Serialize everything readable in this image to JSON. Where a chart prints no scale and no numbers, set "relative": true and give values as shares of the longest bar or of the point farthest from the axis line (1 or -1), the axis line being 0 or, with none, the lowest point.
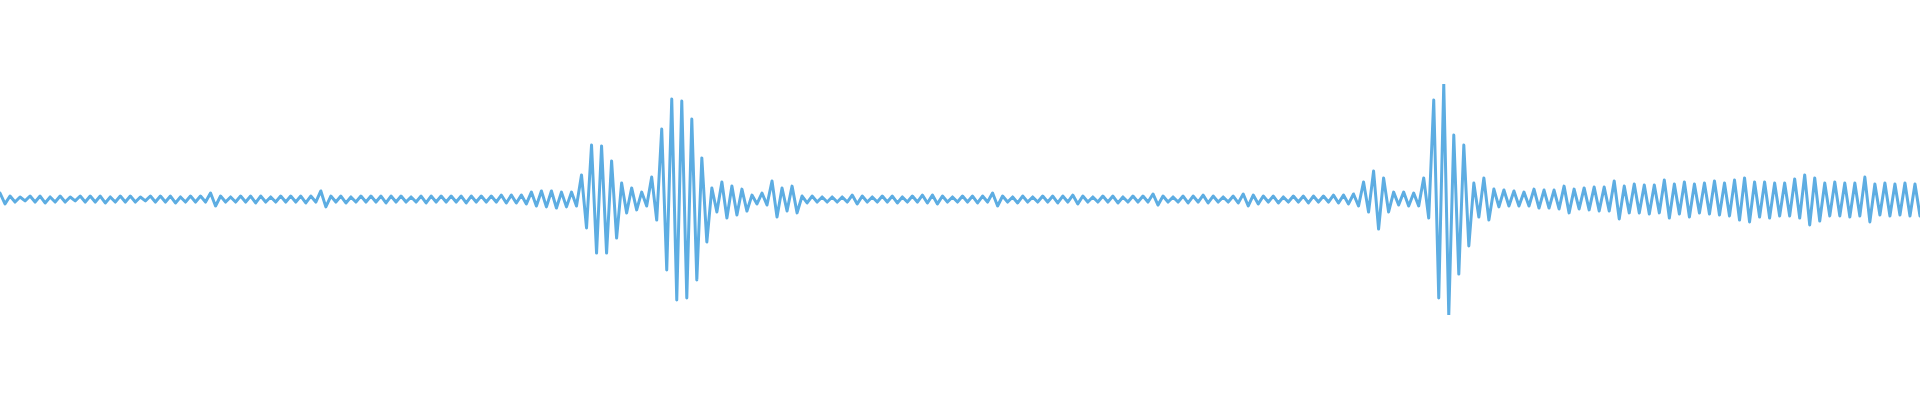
{
  "chart_data": {
    "type": "line",
    "relative": true,
    "color": "#5dade2",
    "categories": [
      null,
      null,
      null,
      null,
      null,
      null,
      null,
      null,
      null,
      null,
      null,
      null,
      null,
      null,
      null,
      null,
      null,
      null,
      null,
      null,
      null,
      null,
      null,
      null,
      null,
      null,
      null,
      null,
      null,
      null,
      null,
      null,
      null,
      null,
      null,
      null,
      null,
      null,
      null,
      null,
      null,
      null,
      null,
      null,
      null,
      null,
      null,
      null,
      null,
      null,
      null,
      null,
      null,
      null,
      null,
      null,
      null,
      null,
      null,
      null,
      null,
      null,
      null,
      null,
      null,
      null,
      null,
      null,
      null,
      null,
      null,
      null,
      null,
      null,
      null,
      null,
      null,
      null,
      null,
      null,
      null,
      null,
      null,
      null,
      null,
      null,
      null,
      null,
      null,
      null,
      null,
      null,
      null,
      null,
      null,
      null,
      null,
      null,
      null,
      null,
      null,
      null,
      null,
      null,
      null,
      null,
      null,
      null,
      null,
      null,
      null,
      null,
      null,
      null,
      null,
      null,
      null,
      null,
      null,
      null,
      null,
      null,
      null,
      null,
      null,
      null,
      null,
      null,
      null,
      null,
      null,
      null,
      null,
      null,
      null,
      null,
      null,
      null,
      null,
      null,
      null,
      null,
      null,
      null,
      null,
      null,
      null,
      null,
      null,
      null,
      null,
      null,
      null,
      null,
      null,
      null,
      null,
      null,
      null,
      null,
      null,
      null,
      null,
      null,
      null,
      null,
      null,
      null,
      null,
      null,
      null,
      null,
      null,
      null,
      null,
      null,
      null,
      null,
      null,
      null,
      null,
      null,
      null,
      null,
      null,
      null,
      null,
      null,
      null,
      null,
      null,
      null,
      null,
      null,
      null,
      null,
      null,
      null,
      null,
      null,
      null,
      null,
      null,
      null,
      null,
      null,
      null,
      null,
      null,
      null,
      null,
      null,
      null,
      null,
      null,
      null,
      null,
      null,
      null,
      null,
      null,
      null,
      null,
      null,
      null,
      null,
      null,
      null,
      null,
      null,
      null,
      null,
      null,
      null,
      null,
      null,
      null,
      null,
      null,
      null,
      null,
      null,
      null,
      null,
      null,
      null,
      null,
      null,
      null,
      null,
      null,
      null,
      null,
      null,
      null,
      null,
      null,
      null,
      null,
      null,
      null,
      null,
      null,
      null,
      null,
      null,
      null,
      null,
      null,
      null,
      null,
      null,
      null,
      null,
      null,
      null,
      null,
      null,
      null,
      null,
      null,
      null,
      null,
      null,
      null,
      null,
      null,
      null,
      null,
      null,
      null,
      null,
      null,
      null,
      null,
      null,
      null,
      null,
      null,
      null,
      null,
      null,
      null,
      null,
      null,
      null,
      null,
      null,
      null,
      null,
      null,
      null,
      null,
      null,
      null,
      null,
      null,
      null,
      null,
      null,
      null,
      null,
      null,
      null,
      null,
      null,
      null,
      null,
      null,
      null,
      null,
      null,
      null,
      null,
      null,
      null,
      null,
      null,
      null,
      null,
      null,
      null,
      null,
      null,
      null,
      null,
      null,
      null,
      null,
      null,
      null,
      null,
      null,
      null,
      null,
      null,
      null,
      null,
      null,
      null,
      null,
      null,
      null,
      null,
      null,
      null,
      null,
      null,
      null,
      null,
      null,
      null,
      null,
      null,
      null,
      null,
      null,
      null,
      null,
      null,
      null,
      null,
      null,
      null
    ],
    "values": [
      0.528,
      0.481,
      0.515,
      0.489,
      0.511,
      0.494,
      0.515,
      0.489,
      0.515,
      0.485,
      0.511,
      0.489,
      0.515,
      0.489,
      0.511,
      0.494,
      0.515,
      0.489,
      0.515,
      0.489,
      0.515,
      0.485,
      0.511,
      0.489,
      0.515,
      0.489,
      0.515,
      0.489,
      0.511,
      0.494,
      0.515,
      0.489,
      0.515,
      0.489,
      0.515,
      0.485,
      0.511,
      0.489,
      0.515,
      0.489,
      0.515,
      0.489,
      0.528,
      0.472,
      0.515,
      0.489,
      0.511,
      0.489,
      0.515,
      0.489,
      0.515,
      0.485,
      0.515,
      0.489,
      0.511,
      0.489,
      0.515,
      0.489,
      0.515,
      0.489,
      0.515,
      0.485,
      0.515,
      0.489,
      0.537,
      0.468,
      0.515,
      0.489,
      0.515,
      0.485,
      0.511,
      0.489,
      0.515,
      0.489,
      0.515,
      0.489,
      0.515,
      0.485,
      0.515,
      0.489,
      0.515,
      0.489,
      0.511,
      0.489,
      0.515,
      0.485,
      0.515,
      0.489,
      0.515,
      0.489,
      0.515,
      0.489,
      0.515,
      0.485,
      0.515,
      0.489,
      0.515,
      0.489,
      0.515,
      0.489,
      0.519,
      0.485,
      0.519,
      0.485,
      0.519,
      0.481,
      0.532,
      0.472,
      0.537,
      0.468,
      0.537,
      0.463,
      0.532,
      0.468,
      0.532,
      0.472,
      0.606,
      0.377,
      0.736,
      0.268,
      0.732,
      0.268,
      0.667,
      0.333,
      0.571,
      0.442,
      0.55,
      0.455,
      0.532,
      0.472,
      0.597,
      0.411,
      0.805,
      0.195,
      0.935,
      0.065,
      0.926,
      0.074,
      0.848,
      0.152,
      0.68,
      0.316,
      0.55,
      0.446,
      0.576,
      0.42,
      0.558,
      0.433,
      0.545,
      0.45,
      0.519,
      0.481,
      0.528,
      0.476,
      0.58,
      0.424,
      0.55,
      0.45,
      0.558,
      0.442,
      0.515,
      0.485,
      0.515,
      0.489,
      0.511,
      0.489,
      0.511,
      0.489,
      0.511,
      0.489,
      0.519,
      0.481,
      0.515,
      0.489,
      0.511,
      0.489,
      0.515,
      0.489,
      0.515,
      0.485,
      0.511,
      0.489,
      0.515,
      0.489,
      0.519,
      0.485,
      0.519,
      0.481,
      0.515,
      0.489,
      0.511,
      0.489,
      0.515,
      0.489,
      0.515,
      0.485,
      0.515,
      0.489,
      0.528,
      0.472,
      0.515,
      0.489,
      0.511,
      0.485,
      0.515,
      0.489,
      0.511,
      0.489,
      0.515,
      0.489,
      0.515,
      0.485,
      0.515,
      0.489,
      0.519,
      0.481,
      0.515,
      0.489,
      0.511,
      0.489,
      0.515,
      0.489,
      0.515,
      0.485,
      0.511,
      0.489,
      0.515,
      0.489,
      0.515,
      0.489,
      0.524,
      0.476,
      0.515,
      0.489,
      0.511,
      0.489,
      0.515,
      0.485,
      0.515,
      0.489,
      0.519,
      0.485,
      0.515,
      0.489,
      0.511,
      0.489,
      0.515,
      0.485,
      0.524,
      0.472,
      0.519,
      0.481,
      0.515,
      0.489,
      0.515,
      0.485,
      0.511,
      0.489,
      0.515,
      0.489,
      0.515,
      0.485,
      0.515,
      0.489,
      0.515,
      0.489,
      0.519,
      0.485,
      0.519,
      0.481,
      0.524,
      0.472,
      0.576,
      0.446,
      0.623,
      0.372,
      0.593,
      0.446,
      0.532,
      0.476,
      0.532,
      0.472,
      0.528,
      0.472,
      0.593,
      0.42,
      0.931,
      0.074,
      1,
      0,
      0.779,
      0.177,
      0.736,
      0.299,
      0.571,
      0.424,
      0.593,
      0.411,
      0.545,
      0.468,
      0.541,
      0.472,
      0.537,
      0.472,
      0.532,
      0.472,
      0.545,
      0.463,
      0.541,
      0.463,
      0.541,
      0.459,
      0.558,
      0.442,
      0.545,
      0.459,
      0.55,
      0.455,
      0.554,
      0.45,
      0.554,
      0.45,
      0.58,
      0.416,
      0.558,
      0.442,
      0.567,
      0.442,
      0.563,
      0.437,
      0.563,
      0.442,
      0.584,
      0.42,
      0.567,
      0.437,
      0.576,
      0.424,
      0.567,
      0.442,
      0.571,
      0.437,
      0.58,
      0.433,
      0.571,
      0.429,
      0.584,
      0.411,
      0.593,
      0.403,
      0.576,
      0.424,
      0.576,
      0.42,
      0.571,
      0.429,
      0.571,
      0.429,
      0.589,
      0.42,
      0.606,
      0.39,
      0.593,
      0.407,
      0.571,
      0.429,
      0.576,
      0.429,
      0.571,
      0.424,
      0.571,
      0.429,
      0.597,
      0.403,
      0.567,
      0.433,
      0.571,
      0.429,
      0.567,
      0.433,
      0.571,
      0.429,
      0.567,
      0.429
    ]
  }
}
